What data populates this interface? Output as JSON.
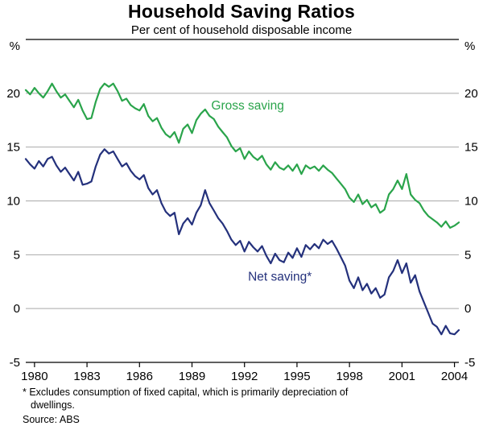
{
  "header": {
    "title": "Household Saving Ratios",
    "subtitle": "Per cent of household disposable income"
  },
  "footer": {
    "footnote_line1": "* Excludes consumption of fixed capital, which is primarily depreciation of",
    "footnote_line2": "dwellings.",
    "source": "Source: ABS"
  },
  "chart_data": {
    "type": "line",
    "title": "Household Saving Ratios",
    "subtitle": "Per cent of household disposable income",
    "unit_label": "%",
    "xlabel": "",
    "ylabel": "%",
    "xlim": [
      1979.5,
      2004.25
    ],
    "ylim": [
      -5,
      25
    ],
    "yticks": [
      -5,
      0,
      5,
      10,
      15,
      20
    ],
    "gridlines": [
      0,
      5,
      10,
      15,
      20
    ],
    "xticks": [
      1980,
      1983,
      1986,
      1989,
      1992,
      1995,
      1998,
      2001,
      2004
    ],
    "grid": true,
    "grid_color": "#a9a9a9",
    "legend_position": "inline-annotations",
    "x": [
      1979.5,
      1979.75,
      1980,
      1980.25,
      1980.5,
      1980.75,
      1981,
      1981.25,
      1981.5,
      1981.75,
      1982,
      1982.25,
      1982.5,
      1982.75,
      1983,
      1983.25,
      1983.5,
      1983.75,
      1984,
      1984.25,
      1984.5,
      1984.75,
      1985,
      1985.25,
      1985.5,
      1985.75,
      1986,
      1986.25,
      1986.5,
      1986.75,
      1987,
      1987.25,
      1987.5,
      1987.75,
      1988,
      1988.25,
      1988.5,
      1988.75,
      1989,
      1989.25,
      1989.5,
      1989.75,
      1990,
      1990.25,
      1990.5,
      1990.75,
      1991,
      1991.25,
      1991.5,
      1991.75,
      1992,
      1992.25,
      1992.5,
      1992.75,
      1993,
      1993.25,
      1993.5,
      1993.75,
      1994,
      1994.25,
      1994.5,
      1994.75,
      1995,
      1995.25,
      1995.5,
      1995.75,
      1996,
      1996.25,
      1996.5,
      1996.75,
      1997,
      1997.25,
      1997.5,
      1997.75,
      1998,
      1998.25,
      1998.5,
      1998.75,
      1999,
      1999.25,
      1999.5,
      1999.75,
      2000,
      2000.25,
      2000.5,
      2000.75,
      2001,
      2001.25,
      2001.5,
      2001.75,
      2002,
      2002.25,
      2002.5,
      2002.75,
      2003,
      2003.25,
      2003.5,
      2003.75,
      2004,
      2004.25
    ],
    "series": [
      {
        "name": "Gross saving",
        "color": "#2aa44b",
        "label_pos": {
          "x": 1990.1,
          "y": 18.5
        },
        "values": [
          20.3,
          19.9,
          20.5,
          20.0,
          19.6,
          20.2,
          20.9,
          20.2,
          19.6,
          19.9,
          19.3,
          18.7,
          19.4,
          18.4,
          17.6,
          17.7,
          19.2,
          20.4,
          20.9,
          20.6,
          20.9,
          20.2,
          19.3,
          19.5,
          18.9,
          18.6,
          18.4,
          19.0,
          17.9,
          17.4,
          17.7,
          16.8,
          16.2,
          15.9,
          16.4,
          15.4,
          16.7,
          17.1,
          16.3,
          17.5,
          18.1,
          18.5,
          17.9,
          17.6,
          16.9,
          16.4,
          15.9,
          15.1,
          14.6,
          14.9,
          13.9,
          14.6,
          14.1,
          13.8,
          14.2,
          13.4,
          12.9,
          13.6,
          13.1,
          12.9,
          13.3,
          12.8,
          13.4,
          12.5,
          13.3,
          13.0,
          13.2,
          12.8,
          13.3,
          12.9,
          12.6,
          12.1,
          11.6,
          11.1,
          10.3,
          9.9,
          10.6,
          9.7,
          10.1,
          9.4,
          9.7,
          8.9,
          9.2,
          10.6,
          11.1,
          11.9,
          11.1,
          12.5,
          10.6,
          10.1,
          9.8,
          9.1,
          8.6,
          8.3,
          8.0,
          7.6,
          8.1,
          7.5,
          7.7,
          8.0
        ]
      },
      {
        "name": "Net saving*",
        "color": "#24317c",
        "label_pos": {
          "x": 1992.2,
          "y": 2.6
        },
        "values": [
          13.9,
          13.4,
          13.0,
          13.7,
          13.2,
          13.9,
          14.1,
          13.3,
          12.7,
          13.1,
          12.5,
          11.9,
          12.7,
          11.5,
          11.6,
          11.8,
          13.2,
          14.3,
          14.8,
          14.4,
          14.6,
          13.9,
          13.2,
          13.5,
          12.8,
          12.3,
          12.0,
          12.4,
          11.2,
          10.6,
          11.0,
          9.8,
          9.0,
          8.6,
          8.9,
          6.9,
          7.9,
          8.4,
          7.8,
          8.9,
          9.6,
          11.0,
          9.8,
          9.1,
          8.4,
          7.9,
          7.2,
          6.4,
          5.9,
          6.3,
          5.3,
          6.2,
          5.7,
          5.3,
          5.8,
          4.9,
          4.2,
          5.1,
          4.5,
          4.3,
          5.2,
          4.7,
          5.6,
          4.8,
          5.9,
          5.5,
          6.0,
          5.6,
          6.4,
          6.0,
          6.3,
          5.6,
          4.8,
          4.0,
          2.6,
          1.9,
          2.9,
          1.7,
          2.3,
          1.4,
          1.9,
          1.0,
          1.3,
          2.9,
          3.5,
          4.5,
          3.3,
          4.2,
          2.4,
          3.1,
          1.6,
          0.6,
          -0.4,
          -1.4,
          -1.7,
          -2.4,
          -1.6,
          -2.3,
          -2.4,
          -2.0
        ]
      }
    ]
  }
}
